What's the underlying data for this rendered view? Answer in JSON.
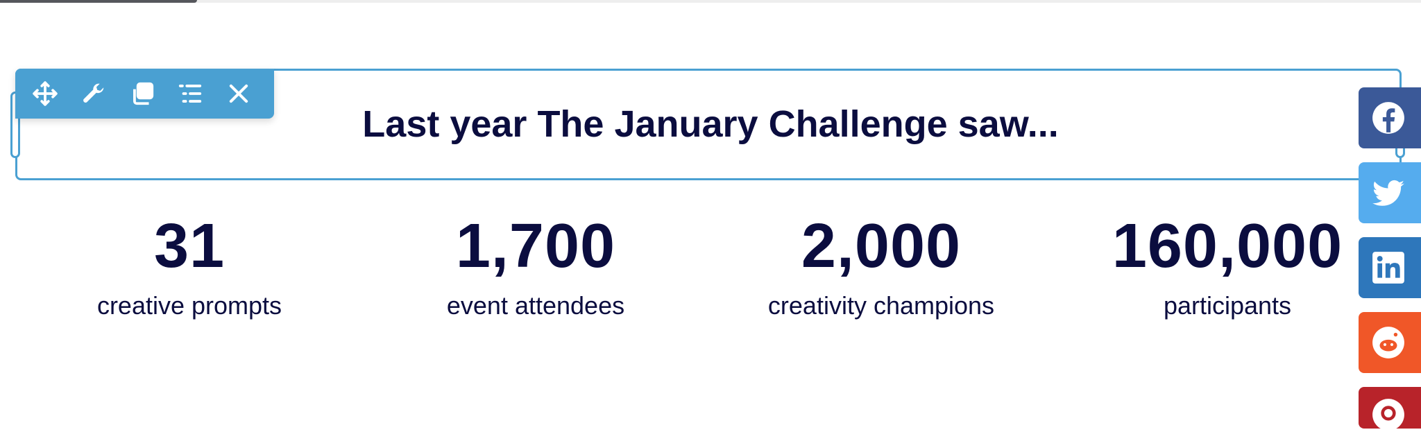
{
  "toolbar": {
    "tools": [
      "move-icon",
      "wrench-icon",
      "duplicate-icon",
      "navigator-icon",
      "close-icon"
    ]
  },
  "headline": "Last year The January Challenge saw...",
  "stats": [
    {
      "value": "31",
      "label": "creative prompts"
    },
    {
      "value": "1,700",
      "label": "event attendees"
    },
    {
      "value": "2,000",
      "label": "creativity champions"
    },
    {
      "value": "160,000",
      "label": "participants"
    }
  ],
  "share": [
    {
      "icon": "facebook-icon",
      "color": "#3b5998"
    },
    {
      "icon": "twitter-icon",
      "color": "#55acee"
    },
    {
      "icon": "linkedin-icon",
      "color": "#2e77bb"
    },
    {
      "icon": "reddit-icon",
      "color": "#f05728"
    },
    {
      "icon": "pinterest-icon",
      "color": "#b8232a"
    }
  ],
  "colors": {
    "accent": "#4aa0d2",
    "text": "#0b0d3f"
  }
}
